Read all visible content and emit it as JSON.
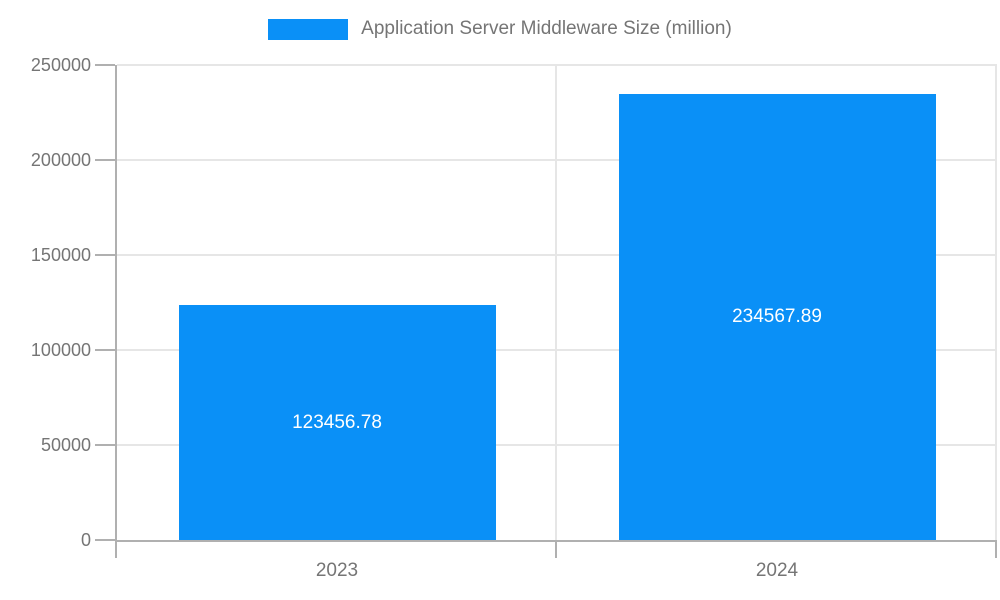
{
  "chart_data": {
    "type": "bar",
    "title": "Application Server Middleware Size (million)",
    "categories": [
      "2023",
      "2024"
    ],
    "values": [
      123456.78,
      234567.89
    ],
    "value_labels": [
      "123456.78",
      "234567.89"
    ],
    "series_name": "Application Server Middleware Size (million)",
    "xlabel": "",
    "ylabel": "",
    "ylim": [
      0,
      250000
    ],
    "yticks": [
      0,
      50000,
      100000,
      150000,
      200000,
      250000
    ],
    "grid": true,
    "legend_position": "top",
    "bar_width_ratio": 0.72
  },
  "colors": {
    "bar": "#0a90f7",
    "text": "#757575",
    "axis": "#b0b0b0",
    "gridline": "#e6e6e6",
    "bar_label": "#ffffff"
  }
}
